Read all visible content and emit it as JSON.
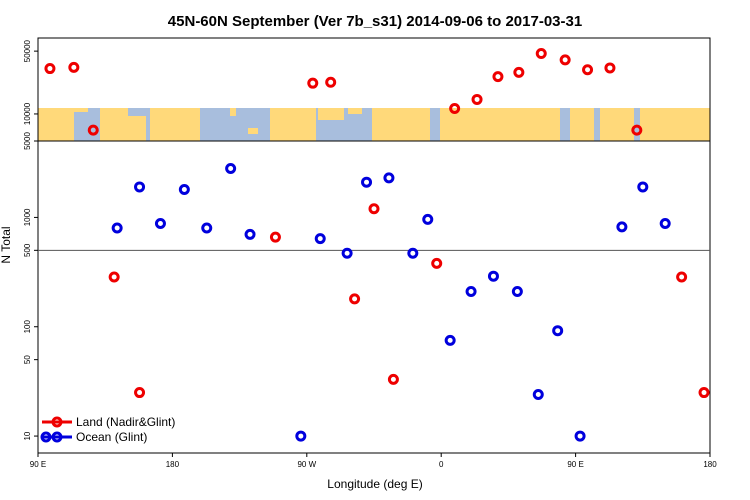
{
  "chart_data": {
    "type": "scatter",
    "title": "45N-60N September (Ver 7b_s31)   2014-09-06 to 2017-03-31",
    "xlabel": "Longitude (deg E)",
    "ylabel": "N Total",
    "x_ticks": [
      {
        "value": 90,
        "label": "90 E"
      },
      {
        "value": 180,
        "label": "180"
      },
      {
        "value": 270,
        "label": "90 W"
      },
      {
        "value": 360,
        "label": "0"
      },
      {
        "value": 450,
        "label": "90 E"
      },
      {
        "value": 540,
        "label": "180"
      }
    ],
    "y_ticks_upper": [
      10000,
      50000
    ],
    "y_ticks_lower": [
      10,
      50,
      100,
      500,
      1000,
      5000
    ],
    "xlim": [
      90,
      540
    ],
    "ylim_upper": [
      5000,
      70000
    ],
    "ylim_lower": [
      7,
      5000
    ],
    "reference_line": 500,
    "scale": "log",
    "colors": {
      "land": "#ee0000",
      "ocean": "#0000dd",
      "map_land": "#ffd97a",
      "map_ocean": "#a8bedd"
    },
    "series": [
      {
        "name": "Land (Nadir&Glint)",
        "color": "#ee0000",
        "points": [
          [
            98,
            32000
          ],
          [
            114,
            33000
          ],
          [
            127,
            6600
          ],
          [
            141,
            285
          ],
          [
            158,
            25
          ],
          [
            249,
            660
          ],
          [
            274,
            22000
          ],
          [
            286,
            22500
          ],
          [
            302,
            180
          ],
          [
            315,
            1200
          ],
          [
            328,
            33
          ],
          [
            357,
            380
          ],
          [
            369,
            11500
          ],
          [
            384,
            14500
          ],
          [
            398,
            26000
          ],
          [
            412,
            29000
          ],
          [
            427,
            47000
          ],
          [
            443,
            40000
          ],
          [
            458,
            31000
          ],
          [
            473,
            32500
          ],
          [
            491,
            6600
          ],
          [
            521,
            285
          ],
          [
            536,
            25
          ]
        ]
      },
      {
        "name": "Ocean (Glint)",
        "color": "#0000dd",
        "points": [
          [
            143,
            800
          ],
          [
            158,
            1900
          ],
          [
            172,
            880
          ],
          [
            188,
            1800
          ],
          [
            203,
            800
          ],
          [
            219,
            2800
          ],
          [
            232,
            700
          ],
          [
            266,
            10
          ],
          [
            279,
            640
          ],
          [
            297,
            470
          ],
          [
            310,
            2100
          ],
          [
            325,
            2300
          ],
          [
            341,
            470
          ],
          [
            351,
            960
          ],
          [
            366,
            75
          ],
          [
            380,
            210
          ],
          [
            395,
            290
          ],
          [
            411,
            210
          ],
          [
            425,
            24
          ],
          [
            438,
            92
          ],
          [
            453,
            10
          ],
          [
            481,
            820
          ],
          [
            495,
            1900
          ],
          [
            510,
            880
          ]
        ]
      }
    ],
    "legend": {
      "position": "bottom-left",
      "entries": [
        "Land (Nadir&Glint)",
        "Ocean (Glint)"
      ]
    }
  }
}
